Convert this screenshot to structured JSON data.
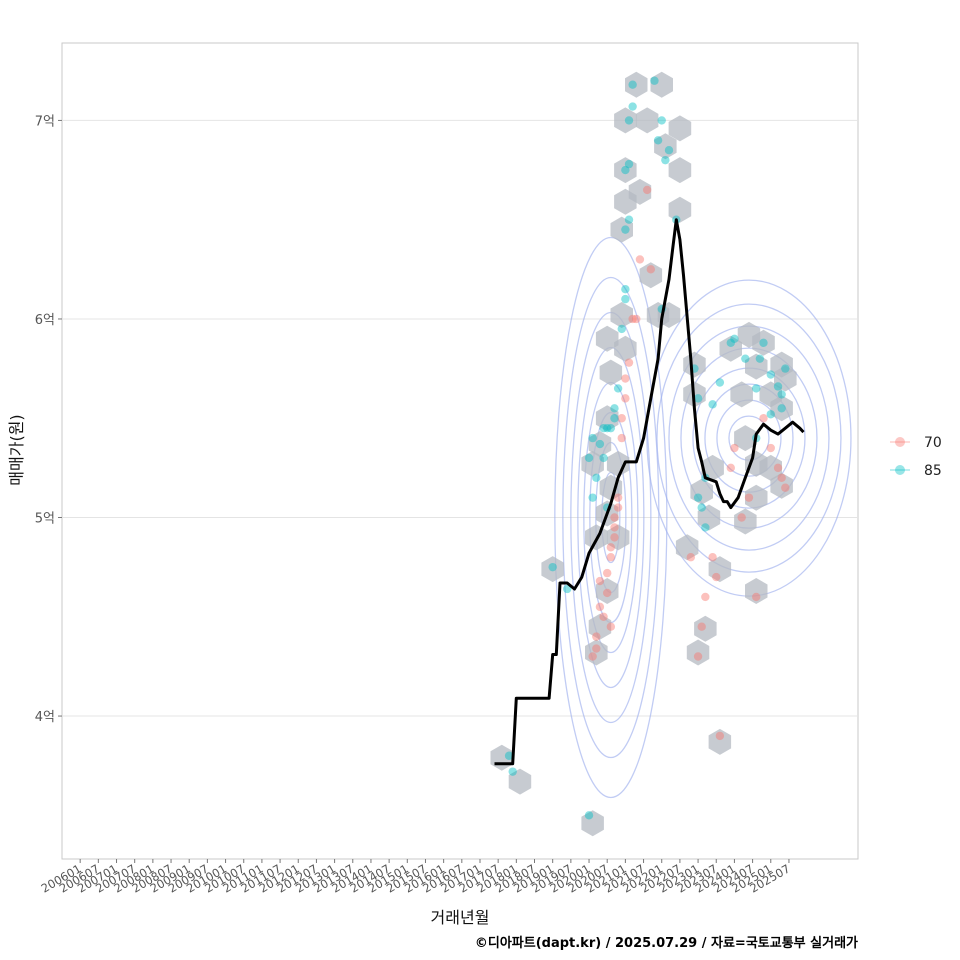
{
  "chart_data": {
    "type": "scatter",
    "xlabel": "거래년월",
    "ylabel": "매매가(원)",
    "caption": "©디아파트(dapt.kr) / 2025.07.29 / 자료=국토교통부 실거래가",
    "x_range": [
      2005.5,
      2027.4
    ],
    "y_range": [
      3.28,
      7.39
    ],
    "y_ticks": [
      {
        "value": 4,
        "label": "4억"
      },
      {
        "value": 5,
        "label": "5억"
      },
      {
        "value": 6,
        "label": "6억"
      },
      {
        "value": 7,
        "label": "7억"
      }
    ],
    "x_ticks": [
      "200601",
      "200607",
      "200701",
      "200707",
      "200801",
      "200807",
      "200901",
      "200907",
      "201001",
      "201007",
      "201101",
      "201107",
      "201201",
      "201207",
      "201301",
      "201307",
      "201401",
      "201407",
      "201501",
      "201507",
      "201601",
      "201607",
      "201701",
      "201707",
      "201801",
      "201807",
      "201901",
      "201907",
      "202001",
      "202007",
      "202101",
      "202107",
      "202201",
      "202207",
      "202301",
      "202307",
      "202401",
      "202407",
      "202501",
      "202507"
    ],
    "legend": [
      {
        "label": "70",
        "color": "#f8766d"
      },
      {
        "label": "85",
        "color": "#00bfc4"
      }
    ],
    "colors": {
      "s70": "#f8766d",
      "s85": "#00bfc4",
      "hex": "#b4b9c2",
      "contour": "#9fb0ee",
      "line": "#000000"
    },
    "hexbins": [
      [
        2017.6,
        3.79
      ],
      [
        2018.1,
        3.67
      ],
      [
        2019.0,
        4.74
      ],
      [
        2020.1,
        3.46
      ],
      [
        2020.2,
        4.32
      ],
      [
        2020.3,
        4.45
      ],
      [
        2020.5,
        4.63
      ],
      [
        2020.2,
        4.9
      ],
      [
        2020.5,
        5.02
      ],
      [
        2020.1,
        5.27
      ],
      [
        2020.6,
        5.15
      ],
      [
        2020.3,
        5.37
      ],
      [
        2020.5,
        5.5
      ],
      [
        2020.8,
        5.27
      ],
      [
        2020.8,
        4.9
      ],
      [
        2020.5,
        5.9
      ],
      [
        2020.6,
        5.73
      ],
      [
        2020.9,
        6.02
      ],
      [
        2021.0,
        5.85
      ],
      [
        2020.9,
        6.45
      ],
      [
        2021.0,
        6.59
      ],
      [
        2021.4,
        6.64
      ],
      [
        2021.7,
        6.22
      ],
      [
        2021.9,
        6.02
      ],
      [
        2022.2,
        6.02
      ],
      [
        2021.0,
        6.75
      ],
      [
        2021.0,
        7.0
      ],
      [
        2021.3,
        7.18
      ],
      [
        2021.6,
        7.0
      ],
      [
        2022.0,
        7.18
      ],
      [
        2022.1,
        6.87
      ],
      [
        2022.5,
        6.96
      ],
      [
        2022.5,
        6.75
      ],
      [
        2022.5,
        6.55
      ],
      [
        2022.7,
        4.85
      ],
      [
        2022.9,
        5.62
      ],
      [
        2022.9,
        5.77
      ],
      [
        2023.0,
        4.32
      ],
      [
        2023.2,
        4.44
      ],
      [
        2023.3,
        5.0
      ],
      [
        2023.6,
        4.74
      ],
      [
        2023.6,
        3.87
      ],
      [
        2023.4,
        5.25
      ],
      [
        2023.1,
        5.13
      ],
      [
        2023.9,
        5.85
      ],
      [
        2024.2,
        5.62
      ],
      [
        2024.3,
        5.4
      ],
      [
        2024.6,
        5.76
      ],
      [
        2024.6,
        5.27
      ],
      [
        2024.3,
        4.98
      ],
      [
        2024.6,
        5.1
      ],
      [
        2024.6,
        4.63
      ],
      [
        2025.0,
        5.62
      ],
      [
        2025.3,
        5.77
      ],
      [
        2025.4,
        5.7
      ],
      [
        2025.3,
        5.55
      ],
      [
        2024.8,
        5.88
      ],
      [
        2024.4,
        5.92
      ],
      [
        2025.0,
        5.25
      ],
      [
        2025.3,
        5.16
      ]
    ],
    "series": [
      {
        "name": "70",
        "points": [
          [
            2020.1,
            4.3
          ],
          [
            2020.2,
            4.4
          ],
          [
            2020.3,
            4.55
          ],
          [
            2020.3,
            4.68
          ],
          [
            2020.5,
            4.62
          ],
          [
            2020.5,
            4.72
          ],
          [
            2020.6,
            4.8
          ],
          [
            2020.7,
            4.9
          ],
          [
            2020.7,
            5.0
          ],
          [
            2020.8,
            5.05
          ],
          [
            2020.6,
            4.45
          ],
          [
            2020.4,
            4.5
          ],
          [
            2020.2,
            4.34
          ],
          [
            2020.9,
            5.4
          ],
          [
            2021.0,
            5.6
          ],
          [
            2021.0,
            5.7
          ],
          [
            2021.1,
            5.78
          ],
          [
            2021.2,
            6.0
          ],
          [
            2021.3,
            6.0
          ],
          [
            2020.9,
            5.5
          ],
          [
            2020.8,
            5.1
          ],
          [
            2020.7,
            4.95
          ],
          [
            2020.6,
            4.85
          ],
          [
            2021.4,
            6.3
          ],
          [
            2021.6,
            6.65
          ],
          [
            2021.7,
            6.25
          ],
          [
            2022.8,
            4.8
          ],
          [
            2023.0,
            4.3
          ],
          [
            2023.1,
            4.45
          ],
          [
            2023.2,
            4.6
          ],
          [
            2023.4,
            4.8
          ],
          [
            2023.5,
            4.7
          ],
          [
            2023.6,
            3.9
          ],
          [
            2023.9,
            5.25
          ],
          [
            2024.0,
            5.35
          ],
          [
            2024.2,
            5.0
          ],
          [
            2024.4,
            5.1
          ],
          [
            2024.6,
            4.6
          ],
          [
            2024.8,
            5.5
          ],
          [
            2025.0,
            5.35
          ],
          [
            2025.2,
            5.25
          ],
          [
            2025.3,
            5.2
          ],
          [
            2025.4,
            5.15
          ]
        ]
      },
      {
        "name": "85",
        "points": [
          [
            2017.8,
            3.8
          ],
          [
            2017.9,
            3.72
          ],
          [
            2019.0,
            4.75
          ],
          [
            2019.4,
            4.64
          ],
          [
            2020.0,
            3.5
          ],
          [
            2020.0,
            5.3
          ],
          [
            2020.1,
            5.4
          ],
          [
            2020.2,
            5.2
          ],
          [
            2020.3,
            5.37
          ],
          [
            2020.4,
            5.45
          ],
          [
            2020.5,
            5.45
          ],
          [
            2020.6,
            5.45
          ],
          [
            2020.7,
            5.5
          ],
          [
            2020.4,
            5.3
          ],
          [
            2020.1,
            5.1
          ],
          [
            2020.5,
            5.05
          ],
          [
            2020.7,
            5.55
          ],
          [
            2020.8,
            5.65
          ],
          [
            2020.9,
            5.95
          ],
          [
            2021.0,
            6.1
          ],
          [
            2021.0,
            6.15
          ],
          [
            2021.1,
            6.5
          ],
          [
            2021.0,
            6.45
          ],
          [
            2021.0,
            6.75
          ],
          [
            2021.1,
            6.78
          ],
          [
            2021.1,
            7.0
          ],
          [
            2021.2,
            7.07
          ],
          [
            2021.2,
            7.18
          ],
          [
            2021.8,
            7.2
          ],
          [
            2021.9,
            6.9
          ],
          [
            2022.0,
            7.0
          ],
          [
            2022.1,
            6.8
          ],
          [
            2022.2,
            6.85
          ],
          [
            2022.4,
            6.5
          ],
          [
            2022.0,
            6.05
          ],
          [
            2022.9,
            5.75
          ],
          [
            2023.0,
            5.6
          ],
          [
            2023.1,
            5.05
          ],
          [
            2023.2,
            4.95
          ],
          [
            2023.4,
            5.57
          ],
          [
            2023.6,
            5.68
          ],
          [
            2023.9,
            5.88
          ],
          [
            2024.0,
            5.9
          ],
          [
            2024.3,
            5.8
          ],
          [
            2024.6,
            5.65
          ],
          [
            2024.7,
            5.8
          ],
          [
            2024.8,
            5.88
          ],
          [
            2025.0,
            5.72
          ],
          [
            2025.2,
            5.66
          ],
          [
            2025.3,
            5.55
          ],
          [
            2025.3,
            5.62
          ],
          [
            2025.4,
            5.75
          ],
          [
            2025.0,
            5.52
          ],
          [
            2024.6,
            5.4
          ],
          [
            2023.2,
            5.2
          ],
          [
            2023.0,
            5.1
          ]
        ]
      }
    ],
    "trend_line": [
      [
        2017.4,
        3.76
      ],
      [
        2017.9,
        3.76
      ],
      [
        2018.0,
        4.09
      ],
      [
        2018.9,
        4.09
      ],
      [
        2019.0,
        4.31
      ],
      [
        2019.1,
        4.31
      ],
      [
        2019.2,
        4.67
      ],
      [
        2019.4,
        4.67
      ],
      [
        2019.6,
        4.64
      ],
      [
        2019.8,
        4.7
      ],
      [
        2020.0,
        4.82
      ],
      [
        2020.3,
        4.92
      ],
      [
        2020.6,
        5.07
      ],
      [
        2020.8,
        5.2
      ],
      [
        2021.0,
        5.28
      ],
      [
        2021.3,
        5.28
      ],
      [
        2021.5,
        5.4
      ],
      [
        2021.7,
        5.6
      ],
      [
        2021.9,
        5.8
      ],
      [
        2022.0,
        6.0
      ],
      [
        2022.2,
        6.2
      ],
      [
        2022.3,
        6.35
      ],
      [
        2022.4,
        6.5
      ],
      [
        2022.5,
        6.4
      ],
      [
        2022.6,
        6.22
      ],
      [
        2022.8,
        5.8
      ],
      [
        2022.9,
        5.55
      ],
      [
        2023.0,
        5.35
      ],
      [
        2023.1,
        5.28
      ],
      [
        2023.2,
        5.2
      ],
      [
        2023.5,
        5.18
      ],
      [
        2023.6,
        5.12
      ],
      [
        2023.7,
        5.08
      ],
      [
        2023.8,
        5.08
      ],
      [
        2023.9,
        5.05
      ],
      [
        2024.1,
        5.1
      ],
      [
        2024.3,
        5.2
      ],
      [
        2024.5,
        5.3
      ],
      [
        2024.6,
        5.42
      ],
      [
        2024.8,
        5.47
      ],
      [
        2025.0,
        5.44
      ],
      [
        2025.2,
        5.42
      ],
      [
        2025.4,
        5.45
      ],
      [
        2025.6,
        5.48
      ],
      [
        2025.8,
        5.45
      ],
      [
        2025.9,
        5.43
      ]
    ],
    "density_centers": [
      [
        2020.6,
        5.0
      ],
      [
        2024.4,
        5.4
      ]
    ]
  }
}
